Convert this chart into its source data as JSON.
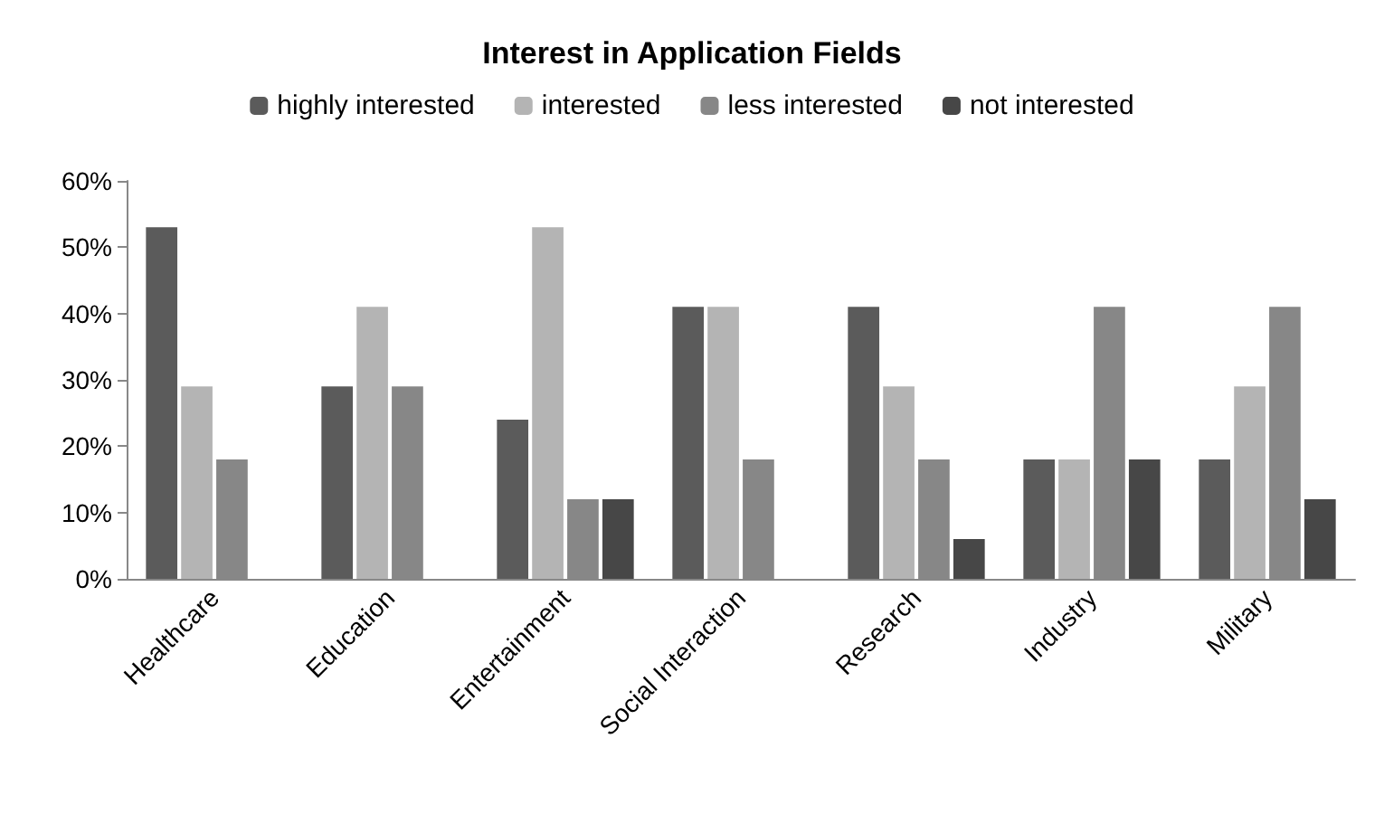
{
  "chart_data": {
    "type": "bar",
    "title": "Interest in Application Fields",
    "categories": [
      "Healthcare",
      "Education",
      "Entertainment",
      "Social Interaction",
      "Research",
      "Industry",
      "Military"
    ],
    "series": [
      {
        "name": "highly interested",
        "color": "#5b5b5b",
        "values": [
          53,
          29,
          24,
          41,
          41,
          18,
          18
        ]
      },
      {
        "name": "interested",
        "color": "#b4b4b4",
        "values": [
          29,
          41,
          53,
          41,
          29,
          18,
          29
        ]
      },
      {
        "name": "less interested",
        "color": "#878787",
        "values": [
          18,
          29,
          12,
          18,
          18,
          41,
          41
        ]
      },
      {
        "name": "not interested",
        "color": "#474747",
        "values": [
          0,
          0,
          12,
          0,
          6,
          18,
          12
        ]
      }
    ],
    "ylim": [
      0,
      60
    ],
    "yticks": [
      {
        "value": 0,
        "label": "0%"
      },
      {
        "value": 10,
        "label": "10%"
      },
      {
        "value": 20,
        "label": "20%"
      },
      {
        "value": 30,
        "label": "30%"
      },
      {
        "value": 40,
        "label": "40%"
      },
      {
        "value": 50,
        "label": "50%"
      },
      {
        "value": 60,
        "label": "60%"
      }
    ],
    "grid": false,
    "legend": "top"
  }
}
